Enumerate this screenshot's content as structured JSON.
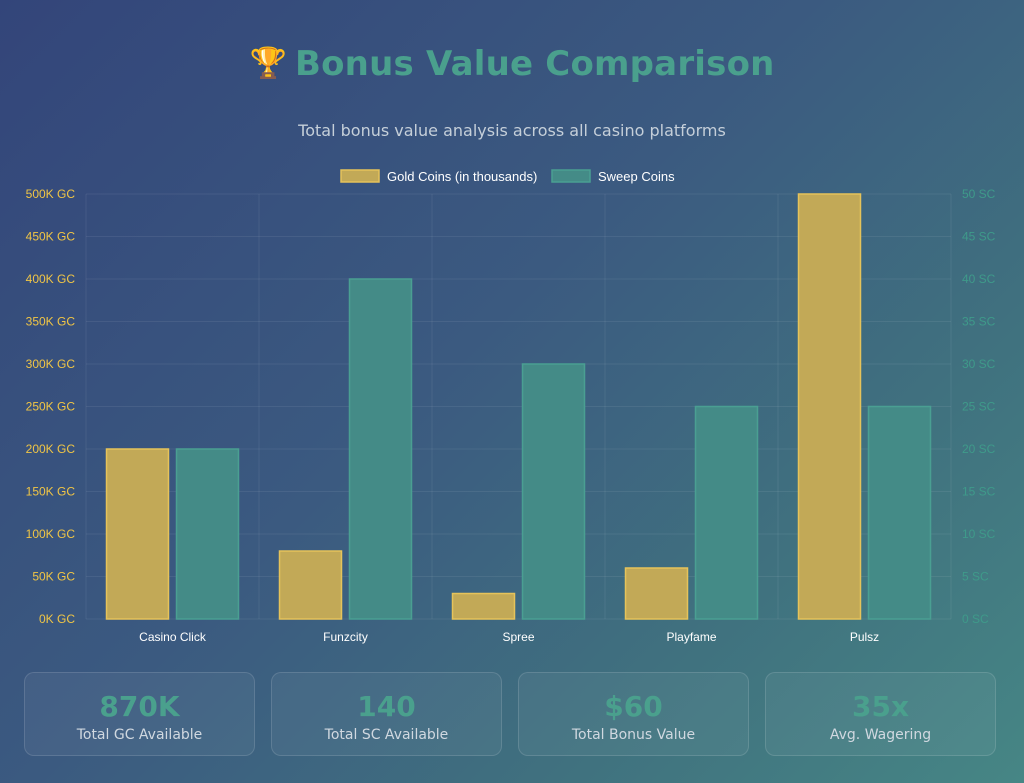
{
  "header": {
    "icon": "trophy-icon",
    "trophy": "🏆",
    "title": "Bonus Value Comparison",
    "subtitle": "Total bonus value analysis across all casino platforms"
  },
  "colors": {
    "gold": "#c2a957",
    "gold_border": "#e6c35a",
    "teal": "#448b87",
    "teal_border": "#4a9f92",
    "left_axis": "#f0c545",
    "right_axis": "#3f9a8a",
    "title": "#4aa08d"
  },
  "chart_data": {
    "type": "bar",
    "categories": [
      "Casino Click",
      "Funzcity",
      "Spree",
      "Playfame",
      "Pulsz"
    ],
    "series": [
      {
        "name": "Gold Coins (in thousands)",
        "axis": "left",
        "values": [
          200,
          80,
          30,
          60,
          500
        ]
      },
      {
        "name": "Sweep Coins",
        "axis": "right",
        "values": [
          20,
          40,
          30,
          25,
          25
        ]
      }
    ],
    "y_left": {
      "min": 0,
      "max": 500,
      "step": 50,
      "tick_labels": [
        "0K GC",
        "50K GC",
        "100K GC",
        "150K GC",
        "200K GC",
        "250K GC",
        "300K GC",
        "350K GC",
        "400K GC",
        "450K GC",
        "500K GC"
      ]
    },
    "y_right": {
      "min": 0,
      "max": 50,
      "step": 5,
      "tick_labels": [
        "0 SC",
        "5 SC",
        "10 SC",
        "15 SC",
        "20 SC",
        "25 SC",
        "30 SC",
        "35 SC",
        "40 SC",
        "45 SC",
        "50 SC"
      ]
    },
    "legend_position": "top-center",
    "grid": true
  },
  "stats": [
    {
      "value": "870K",
      "label": "Total GC Available"
    },
    {
      "value": "140",
      "label": "Total SC Available"
    },
    {
      "value": "$60",
      "label": "Total Bonus Value"
    },
    {
      "value": "35x",
      "label": "Avg. Wagering"
    }
  ]
}
